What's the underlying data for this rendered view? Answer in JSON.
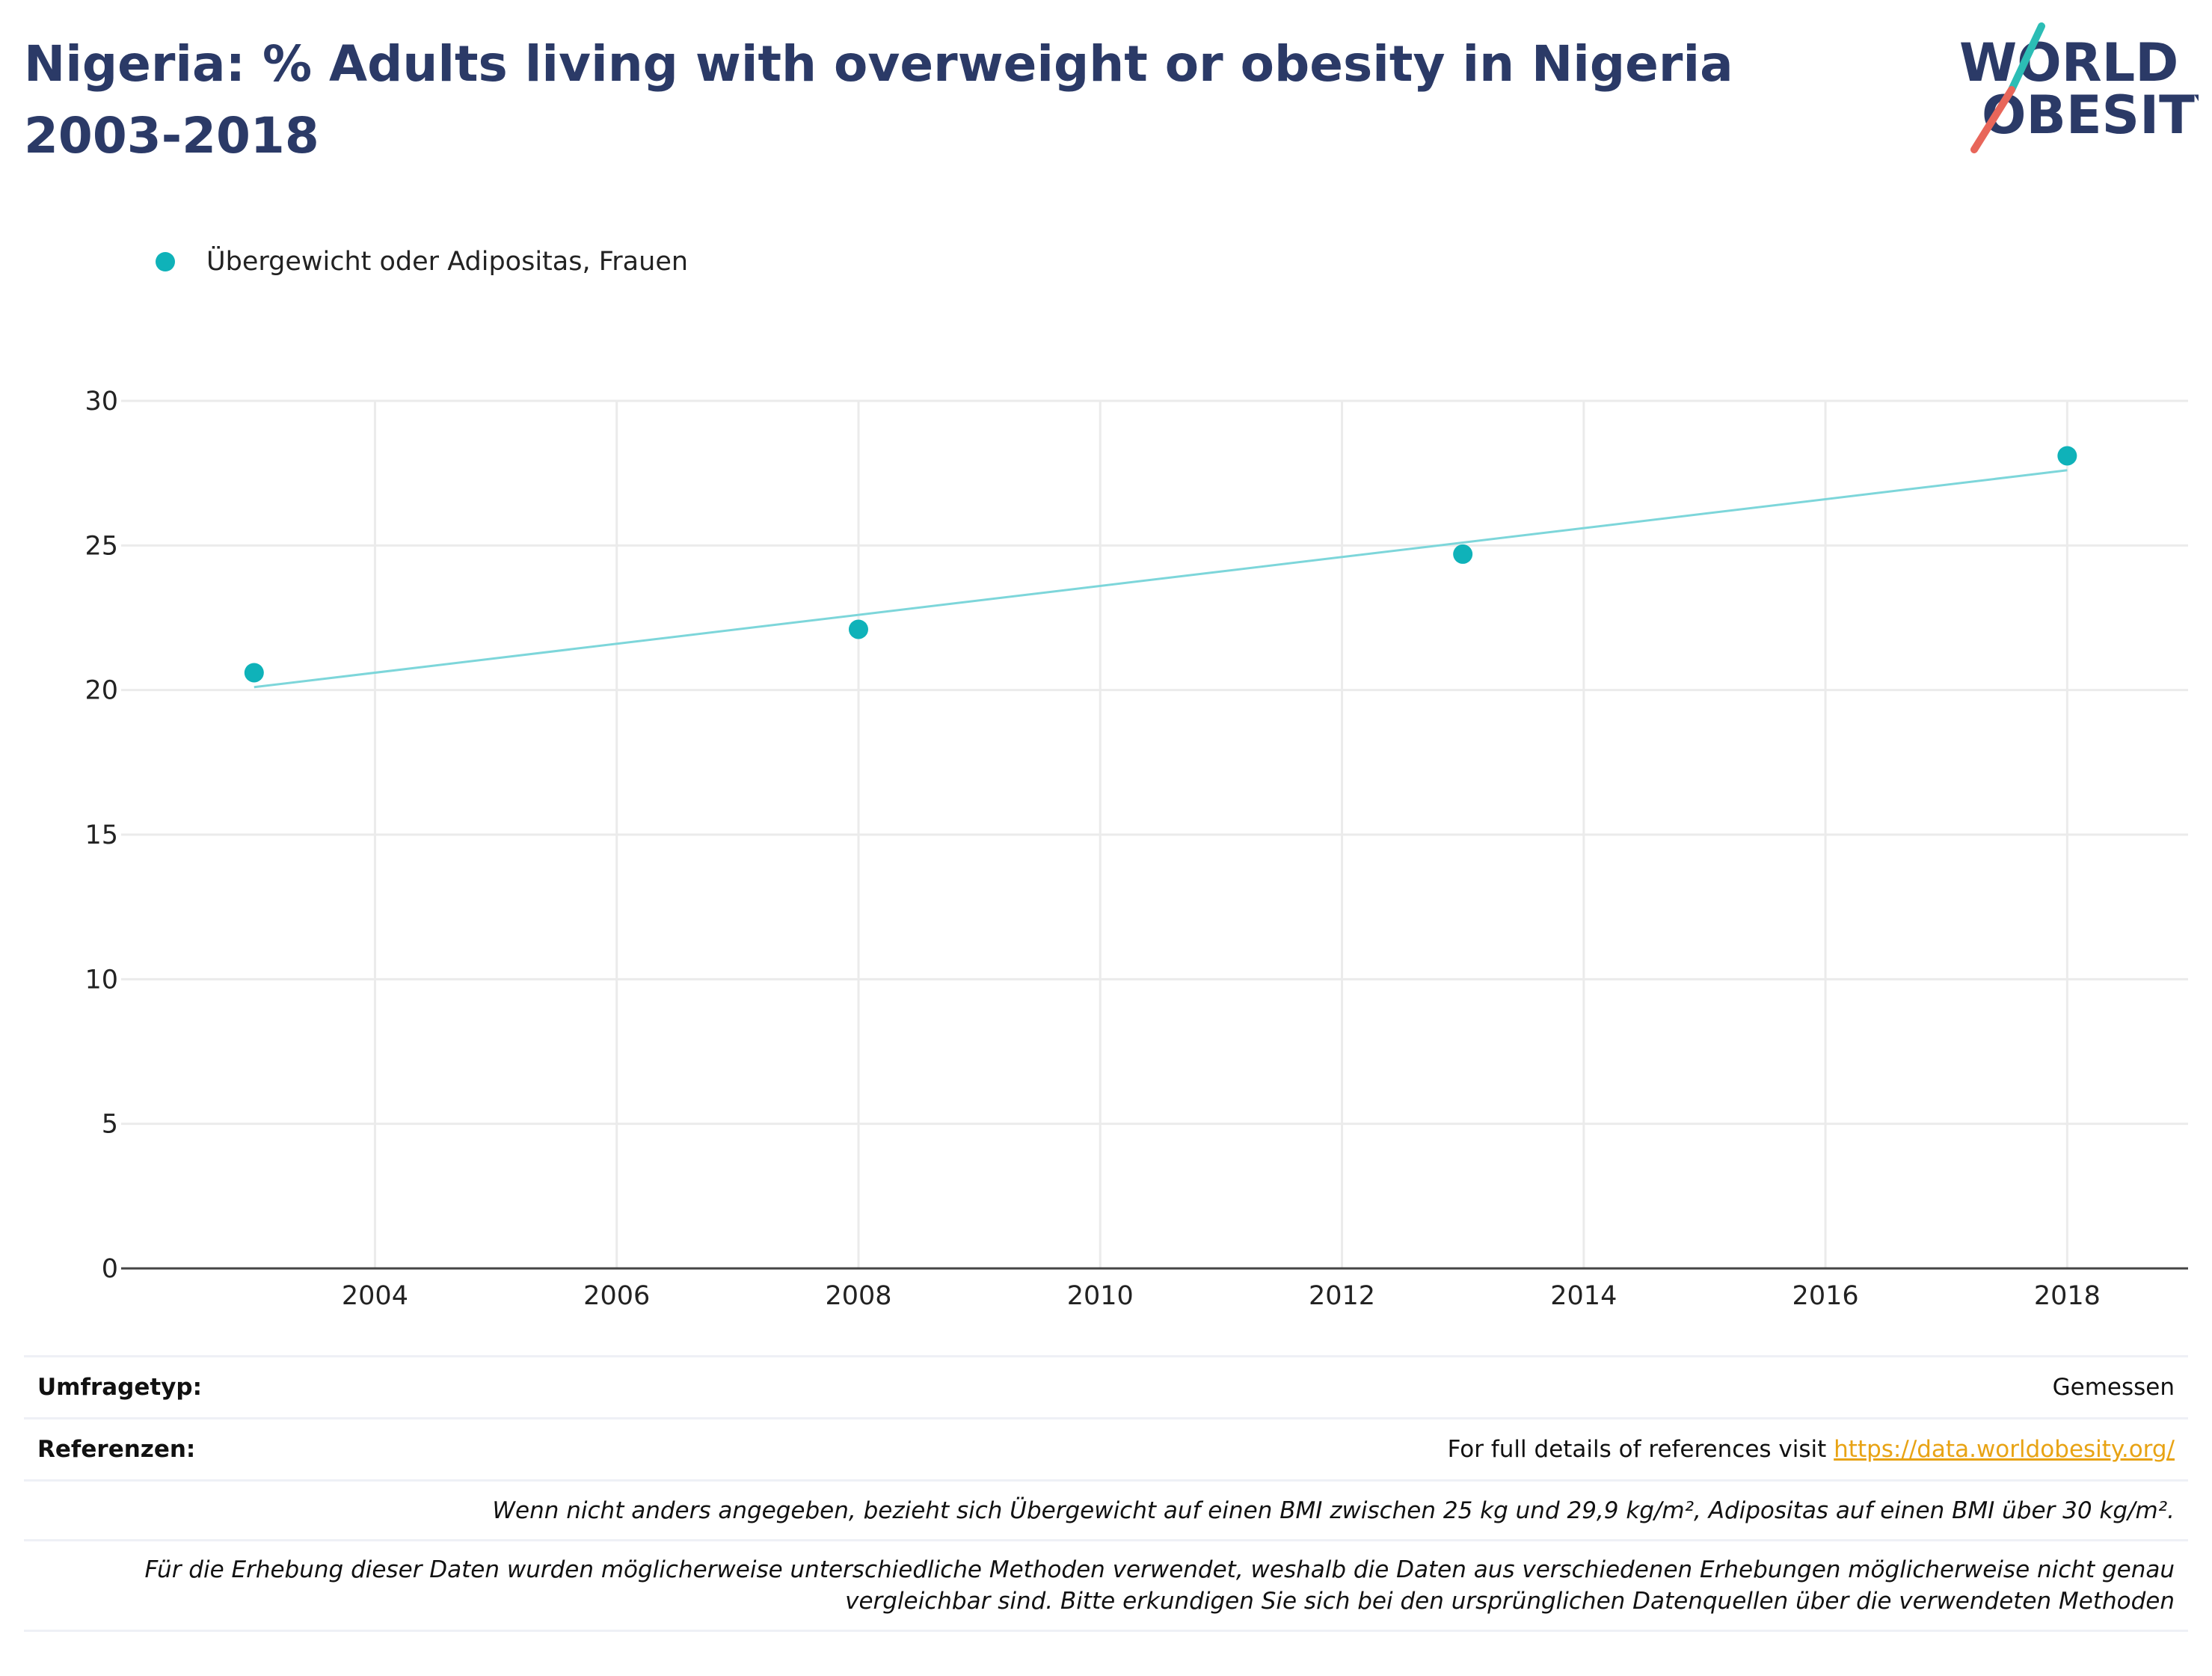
{
  "title": "Nigeria: % Adults living with overweight or obesity in Nigeria 2003-2018",
  "logo": {
    "line1": "WORLD",
    "line2": "OBESITY"
  },
  "colors": {
    "title": "#2b3a67",
    "series": "#0fb2b9",
    "trend": "#7dd6da",
    "grid": "#ebebeb",
    "axis": "#444444",
    "link": "#e8a314",
    "logo_text": "#2b3a67",
    "logo_teal": "#2cbdb5",
    "logo_red": "#e8665a"
  },
  "legend": {
    "label": "Übergewicht oder Adipositas, Frauen"
  },
  "chart_data": {
    "type": "scatter",
    "title": "Nigeria: % Adults living with overweight or obesity in Nigeria 2003-2018",
    "xlabel": "",
    "ylabel": "",
    "xlim": [
      2001.9,
      2019.0
    ],
    "ylim": [
      0,
      30
    ],
    "x_ticks": [
      2004,
      2006,
      2008,
      2010,
      2012,
      2014,
      2016,
      2018
    ],
    "y_ticks": [
      0,
      5,
      10,
      15,
      20,
      25,
      30
    ],
    "grid": true,
    "legend_position": "top-left",
    "series": [
      {
        "name": "Übergewicht oder Adipositas, Frauen",
        "x": [
          2003,
          2008,
          2013,
          2018
        ],
        "y": [
          20.6,
          22.1,
          24.7,
          28.1
        ]
      }
    ],
    "trendline": {
      "x": [
        2003,
        2018
      ],
      "y": [
        20.1,
        27.6
      ]
    }
  },
  "notes": {
    "survey_type_label": "Umfragetyp:",
    "survey_type_value": "Gemessen",
    "references_label": "Referenzen:",
    "references_text": "For full details of references visit ",
    "references_link": "https://data.worldobesity.org/",
    "bmi_note": "Wenn nicht anders angegeben, bezieht sich Übergewicht auf einen BMI zwischen 25 kg und 29,9 kg/m², Adipositas auf einen BMI über 30 kg/m².",
    "method_note_line1": "Für die Erhebung dieser Daten wurden möglicherweise unterschiedliche Methoden verwendet, weshalb die Daten aus verschiedenen Erhebungen möglicherweise nicht genau",
    "method_note_line2": "vergleichbar sind. Bitte erkundigen Sie sich bei den ursprünglichen Datenquellen über die verwendeten Methoden"
  }
}
